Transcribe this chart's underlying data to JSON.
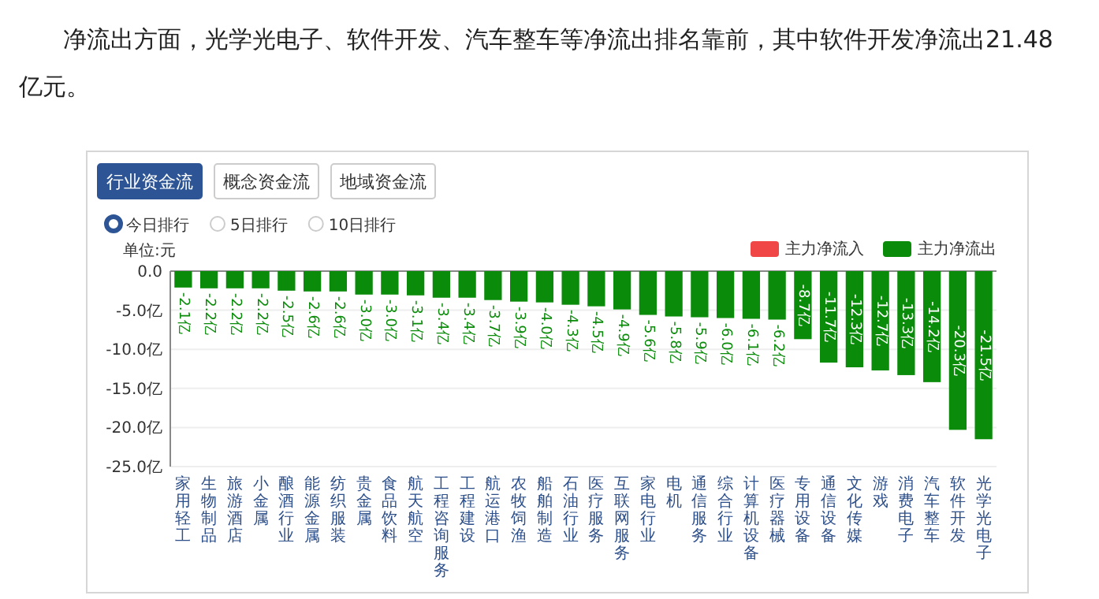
{
  "chart_data": {
    "type": "bar",
    "annotations": [
      "净流出方面，光学光电子、软件开发、汽车整车等净流出排名靠前，其中软件开发净流出21.48亿元。",
      "行业资金流",
      "概念资金流",
      "地域资金流",
      "今日排行",
      "5日排行",
      "10日排行"
    ],
    "ylabel": "单位:元",
    "categories": [
      "家用轻工",
      "生物制品",
      "旅游酒店",
      "小金属",
      "酿酒行业",
      "能源金属",
      "纺织服装",
      "贵金属",
      "食品饮料",
      "航天航空",
      "工程咨询服务",
      "工程建设",
      "航运港口",
      "农牧饲渔",
      "船舶制造",
      "石油行业",
      "医疗服务",
      "互联网服务",
      "家电行业",
      "电机",
      "通信服务",
      "综合行业",
      "计算机设备",
      "医疗器械",
      "专用设备",
      "通信设备",
      "文化传媒",
      "游戏",
      "消费电子",
      "汽车整车",
      "软件开发",
      "光学光电子"
    ],
    "series": [
      {
        "name": "主力净流入",
        "color": "#f04646",
        "values": [
          null,
          null,
          null,
          null,
          null,
          null,
          null,
          null,
          null,
          null,
          null,
          null,
          null,
          null,
          null,
          null,
          null,
          null,
          null,
          null,
          null,
          null,
          null,
          null,
          null,
          null,
          null,
          null,
          null,
          null,
          null,
          null
        ]
      },
      {
        "name": "主力净流出",
        "color": "#0a8c0a",
        "values": [
          -2.1,
          -2.2,
          -2.2,
          -2.2,
          -2.5,
          -2.6,
          -2.6,
          -3.0,
          -3.0,
          -3.1,
          -3.4,
          -3.4,
          -3.7,
          -3.9,
          -4.0,
          -4.3,
          -4.5,
          -4.9,
          -5.6,
          -5.8,
          -5.9,
          -6.0,
          -6.1,
          -6.2,
          -8.7,
          -11.7,
          -12.3,
          -12.7,
          -13.3,
          -14.2,
          -20.3,
          -21.5
        ],
        "value_labels": [
          "-2.1亿",
          "-2.2亿",
          "-2.2亿",
          "-2.2亿",
          "-2.5亿",
          "-2.6亿",
          "-2.6亿",
          "-3.0亿",
          "-3.0亿",
          "-3.1亿",
          "-3.4亿",
          "-3.4亿",
          "-3.7亿",
          "-3.9亿",
          "-4.0亿",
          "-4.3亿",
          "-4.5亿",
          "-4.9亿",
          "-5.6亿",
          "-5.8亿",
          "-5.9亿",
          "-6.0亿",
          "-6.1亿",
          "-6.2亿",
          "-8.7亿",
          "-11.7亿",
          "-12.3亿",
          "-12.7亿",
          "-13.3亿",
          "-14.2亿",
          "-20.3亿",
          "-21.5亿"
        ]
      }
    ],
    "ylim": [
      -25,
      0
    ],
    "yticks": [
      {
        "value": 0,
        "label": "0.0"
      },
      {
        "value": -5,
        "label": "-5.0亿"
      },
      {
        "value": -10,
        "label": "-10.0亿"
      },
      {
        "value": -15,
        "label": "-15.0亿"
      },
      {
        "value": -20,
        "label": "-20.0亿"
      },
      {
        "value": -25,
        "label": "-25.0亿"
      }
    ],
    "grid": "y",
    "legend": "top right"
  }
}
